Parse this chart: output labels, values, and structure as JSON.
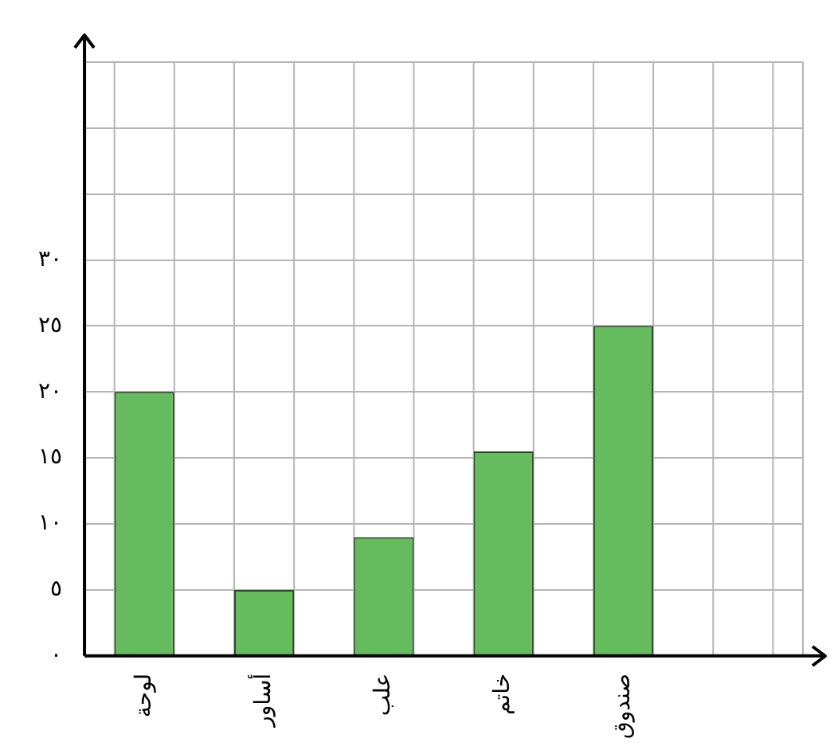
{
  "chart_data": {
    "type": "bar",
    "categories": [
      "لوحة",
      "أساور",
      "علب",
      "خاتم",
      "صندوق",
      null
    ],
    "values": [
      20,
      5,
      9,
      15.5,
      25,
      null
    ],
    "color": "#66bb5f",
    "ylim": [
      0,
      47
    ],
    "yticks": [
      {
        "value": 0,
        "label": "٠"
      },
      {
        "value": 5,
        "label": "٥"
      },
      {
        "value": 10,
        "label": "١٠"
      },
      {
        "value": 15,
        "label": "١٥"
      },
      {
        "value": 20,
        "label": "٢٠"
      },
      {
        "value": 25,
        "label": "٢٥"
      },
      {
        "value": 30,
        "label": "٣٠"
      },
      {
        "value": 35,
        "label": null
      },
      {
        "value": 40,
        "label": null
      },
      {
        "value": 45,
        "label": null
      }
    ],
    "grid": true,
    "legend": false
  }
}
